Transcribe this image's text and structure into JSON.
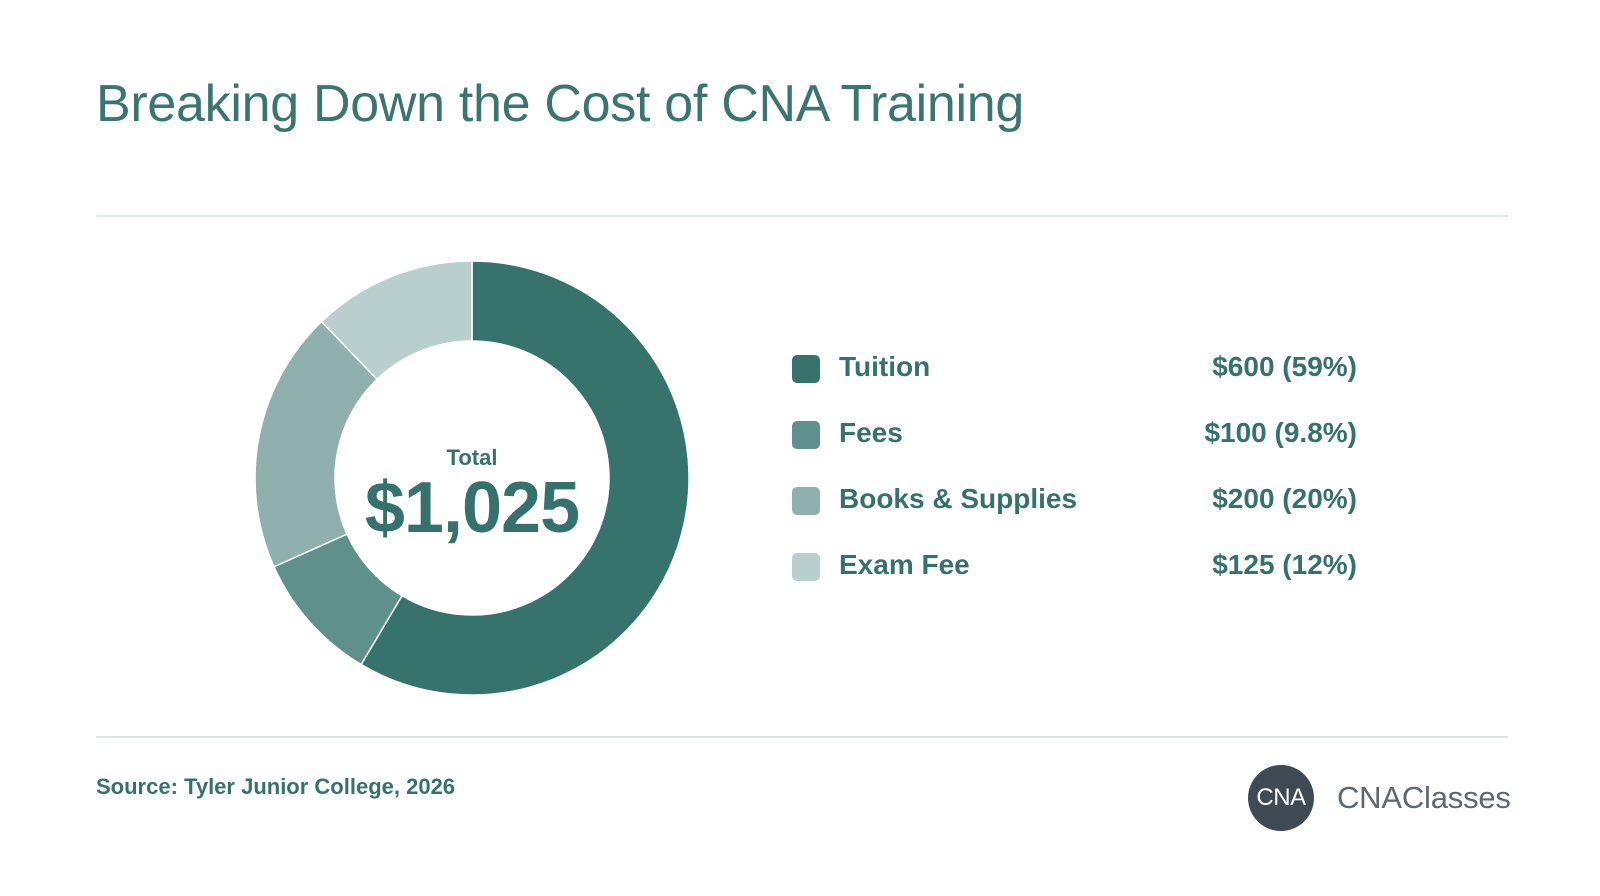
{
  "title": "Breaking Down the Cost of CNA Training",
  "center": {
    "label": "Total",
    "value": "$1,025"
  },
  "legend": [
    {
      "label": "Tuition",
      "value_text": "$600 (59%)",
      "color": "#36736d"
    },
    {
      "label": "Fees",
      "value_text": "$100 (9.8%)",
      "color": "#5f908b"
    },
    {
      "label": "Books & Supplies",
      "value_text": "$200 (20%)",
      "color": "#8fb0ad"
    },
    {
      "label": "Exam Fee",
      "value_text": "$125 (12%)",
      "color": "#b8cfcd"
    }
  ],
  "source": "Source: Tyler Junior College, 2026",
  "logo": {
    "badge": "CNA",
    "name": "CNAClasses"
  },
  "chart_data": {
    "type": "pie",
    "style": "donut",
    "title": "Breaking Down the Cost of CNA Training",
    "total": 1025,
    "categories": [
      "Tuition",
      "Fees",
      "Books & Supplies",
      "Exam Fee"
    ],
    "values": [
      600,
      100,
      200,
      125
    ],
    "percent_labels": [
      "59%",
      "9.8%",
      "20%",
      "12%"
    ],
    "colors": [
      "#36736d",
      "#5f908b",
      "#8fb0ad",
      "#b8cfcd"
    ],
    "legend_position": "right"
  }
}
